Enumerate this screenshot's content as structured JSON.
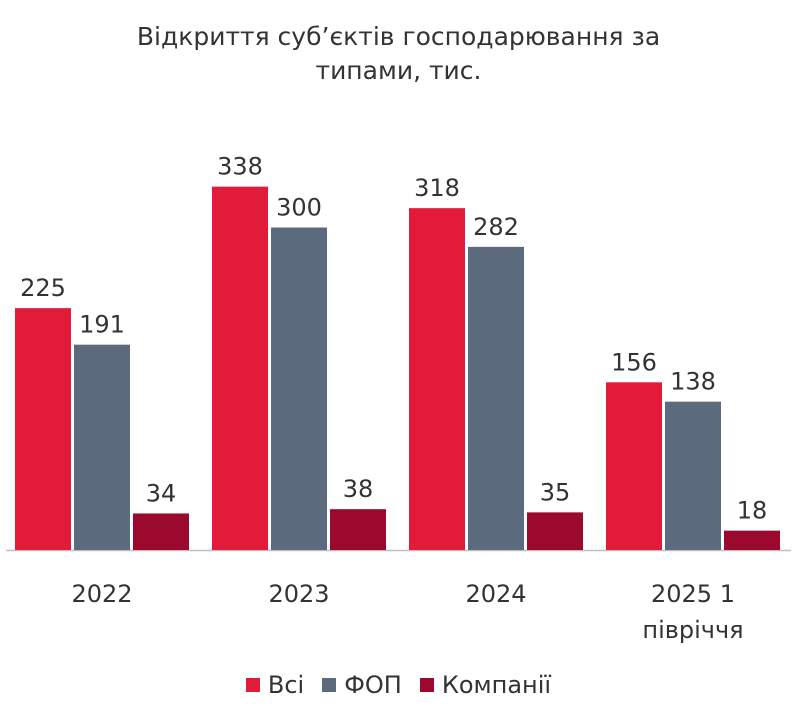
{
  "chart_data": {
    "type": "bar",
    "title_lines": [
      "Відкриття суб’єктів господарювання за",
      "типами, тис."
    ],
    "categories": [
      [
        "2022"
      ],
      [
        "2023"
      ],
      [
        "2024"
      ],
      [
        "2025 1",
        "півріччя"
      ]
    ],
    "series": [
      {
        "name": "Всі",
        "color": "#E31B3B",
        "values": [
          225,
          338,
          318,
          156
        ]
      },
      {
        "name": "ФОП",
        "color": "#5B6B7D",
        "values": [
          191,
          300,
          282,
          138
        ]
      },
      {
        "name": "Компанії",
        "color": "#9B0A2E",
        "values": [
          34,
          38,
          35,
          18
        ]
      }
    ],
    "ylim": [
      0,
      350
    ],
    "grid": false,
    "legend_position": "bottom",
    "data_labels": true
  }
}
